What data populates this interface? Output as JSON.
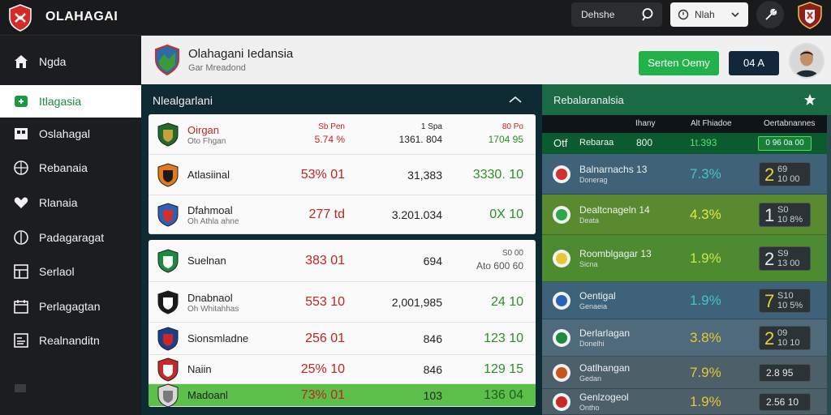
{
  "app": {
    "brand": "OLAHAGAI"
  },
  "topbar": {
    "search_value": "Dehshe",
    "filter_value": "Nlah"
  },
  "sidebar": {
    "items": [
      {
        "label": "Ngda"
      },
      {
        "label": "Itlagasia"
      },
      {
        "label": "Oslahagal"
      },
      {
        "label": "Rebanaia"
      },
      {
        "label": "Rlanaia"
      },
      {
        "label": "Padagaragat"
      },
      {
        "label": "Serlaol"
      },
      {
        "label": "Perlagagtan"
      },
      {
        "label": "Realnanditn"
      }
    ]
  },
  "header": {
    "title": "Olahagani Iedansia",
    "subtitle": "Gar Mreadond",
    "primary_button": "Serten Oemy",
    "secondary_button": "04 A"
  },
  "matches_panel": {
    "title": "Nlealgarlani",
    "group1": [
      {
        "name": "Oirgan",
        "sub": "Oto Fhgan",
        "pct": "5.74 %",
        "pct_head": "Sb Pen",
        "mid": "1361. 804",
        "mid_head": "1 Spa",
        "score": "1704 95",
        "score_head": "80 Po",
        "name_color": "#c0241f",
        "pct_color": "#c0241f",
        "score_color": "#2a8f24"
      },
      {
        "name": "Atlasiinal",
        "sub": "",
        "pct": "53% 01",
        "pct_head": "",
        "mid": "31,383",
        "mid_head": "",
        "score": "3330. 10",
        "score_head": "",
        "name_color": "#222222",
        "pct_color": "#c0241f",
        "score_color": "#2a8f24"
      },
      {
        "name": "Dfahmoal",
        "sub": "Oh Athla ahne",
        "pct": "277 td",
        "pct_head": "",
        "mid": "3.201.034",
        "mid_head": "",
        "score": "0X 10",
        "score_head": "",
        "name_color": "#222222",
        "pct_color": "#c0241f",
        "score_color": "#2a8f24"
      }
    ],
    "group2": [
      {
        "name": "Suelnan",
        "sub": "",
        "pct": "383 01",
        "pct_head": "",
        "mid": "694",
        "mid_head": "",
        "score": "Ato 600 60",
        "score_head": "S0 00",
        "name_color": "#222222",
        "pct_color": "#c0241f",
        "score_color": "#555555"
      },
      {
        "name": "Dnabnaol",
        "sub": "Oh Whitahhas",
        "pct": "553 10",
        "pct_head": "",
        "mid": "2,001,985",
        "mid_head": "",
        "score": "24 10",
        "score_head": "",
        "name_color": "#222222",
        "pct_color": "#c0241f",
        "score_color": "#2a8f24"
      },
      {
        "name": "Sionsmladne",
        "sub": "",
        "pct": "256 01",
        "pct_head": "",
        "mid": "846",
        "mid_head": "",
        "score": "123 10",
        "score_head": "",
        "name_color": "#222222",
        "pct_color": "#c0241f",
        "score_color": "#2a8f24"
      },
      {
        "name": "Naiin",
        "sub": "",
        "pct": "25% 10",
        "pct_head": "",
        "mid": "846",
        "mid_head": "",
        "score": "129 15",
        "score_head": "",
        "name_color": "#222222",
        "pct_color": "#c0241f",
        "score_color": "#2a8f24"
      },
      {
        "name": "Madoanl",
        "sub": "",
        "pct": "73% 01",
        "pct_head": "",
        "mid": "103",
        "mid_head": "",
        "score": "136 04",
        "score_head": "",
        "name_color": "#1e1e1e",
        "pct_color": "#c0241f",
        "score_color": "#1f5f1a"
      }
    ]
  },
  "right_panel": {
    "title": "Rebalaranalsia",
    "headers": [
      "Ihany",
      "Alt Fhiadoe",
      "Oertabnannes"
    ],
    "top_row": {
      "name": "Otf",
      "label": "Rebaraa",
      "value": "800",
      "stat": "1t.393",
      "badge": "0 96 0a 00"
    },
    "rows": [
      {
        "name": "Balnarnachs 13",
        "sub": "Donerag",
        "pct": "7.3%",
        "big": "2",
        "small": "69\n10 00",
        "bg": "#3f6279",
        "pct_color": "#40c6c8",
        "big_color": "#e8d33c"
      },
      {
        "name": "Dealtcnageln 14",
        "sub": "Deata",
        "pct": "4.3%",
        "big": "1",
        "small": "S0\n10 8%",
        "bg": "#5a8a2f",
        "pct_color": "#e4e645",
        "big_color": "#e6eaec"
      },
      {
        "name": "Roomblgagar 13",
        "sub": "Sicna",
        "pct": "1.9%",
        "big": "2",
        "small": "S9\n13 00",
        "bg": "#4d8a30",
        "pct_color": "#c9e84a",
        "big_color": "#e6eaec"
      },
      {
        "name": "Oentigal",
        "sub": "Genaeia",
        "pct": "1.9%",
        "big": "7",
        "small": "S10\n10 5%",
        "bg": "#3d6279",
        "pct_color": "#40c6c8",
        "big_color": "#e8d33c"
      },
      {
        "name": "Derlarlagan",
        "sub": "Donelhi",
        "pct": "3.8%",
        "big": "2",
        "small": "09\n10 10",
        "bg": "#4f6a7b",
        "pct_color": "#e8c832",
        "big_color": "#e8d33c"
      },
      {
        "name": "Oatlhangan",
        "sub": "Gedan",
        "pct": "7.9%",
        "big": "",
        "small": "2.8 95",
        "bg": "#4d5f69",
        "pct_color": "#e8c832",
        "big_color": "#e6eaec"
      },
      {
        "name": "Genlzogeol",
        "sub": "Ontho",
        "pct": "1.9%",
        "big": "",
        "small": "2.56 10",
        "bg": "#4d5f69",
        "pct_color": "#e8c832",
        "big_color": "#e6eaec"
      }
    ]
  }
}
